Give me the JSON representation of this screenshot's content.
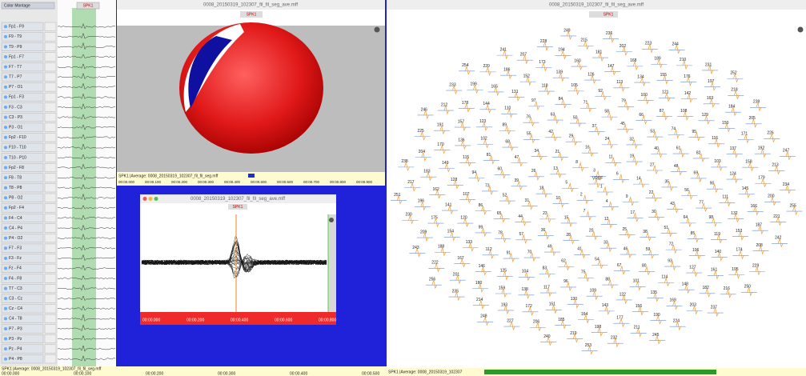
{
  "montage_label": "Color Montage",
  "channels": [
    "Fp1 - F9",
    "F9 - T9",
    "T9 - P9",
    "Fp1 - F7",
    "F7 - T7",
    "T7 - P7",
    "P7 - O1",
    "Fp1 - F3",
    "F3 - C3",
    "C3 - P3",
    "P3 - O1",
    "Fp2 - F10",
    "F10 - T10",
    "T10 - P10",
    "Fp2 - F8",
    "F8 - T8",
    "T8 - P8",
    "P8 - O2",
    "Fp2 - F4",
    "F4 - C4",
    "C4 - P4",
    "P4 - O2",
    "F7 - F3",
    "F3 - Fz",
    "Fz - F4",
    "F4 - F8",
    "T7 - C3",
    "C3 - Cz",
    "Cz - C4",
    "C4 - T8",
    "P7 - P3",
    "P3 - Pz",
    "Pz - P4",
    "P4 - P8"
  ],
  "main_event": "SPK1",
  "topomap_window": {
    "title": "0008_20150319_102307_fil_fil_seg_ave.mff",
    "event": "SPK1",
    "footer": "SPK1 |Average: 0008_20150319_102307_fil_fil_seg.mff",
    "times": [
      "00:00.000",
      "00:00.100",
      "00:00.200",
      "00:00.300",
      "00:00.400",
      "00:00.500",
      "00:00.600",
      "00:00.700",
      "00:00.800",
      "00:00.900"
    ]
  },
  "butterfly_window": {
    "title": "0008_20150319_102307_fil_fil_seg_ave.mff",
    "event": "SPK1",
    "times": [
      "00:00.000",
      "00:00.200",
      "00:00.400",
      "00:00.600",
      "00:00.800"
    ]
  },
  "electrode_window": {
    "title": "0008_20150319_102307_fil_fil_seg_ave.mff",
    "event": "SPK1",
    "footer": "SPK1 |Average: 0008_20150319_102307",
    "reference": "VREF",
    "electrodes": [
      1,
      2,
      3,
      4,
      5,
      6,
      7,
      8,
      9,
      10,
      11,
      12,
      13,
      14,
      15,
      16,
      17,
      18,
      19,
      20,
      21,
      22,
      23,
      24,
      25,
      26,
      27,
      28,
      29,
      30,
      31,
      32,
      33,
      34,
      35,
      36,
      37,
      38,
      39,
      40,
      41,
      42,
      43,
      44,
      45,
      46,
      47,
      48,
      49,
      50,
      51,
      52,
      53,
      54,
      55,
      56,
      57,
      58,
      59,
      60,
      61,
      62,
      63,
      64,
      65,
      66,
      67,
      68,
      69,
      70,
      71,
      72,
      73,
      74,
      75,
      76,
      77,
      78,
      79,
      80,
      81,
      82,
      83,
      84,
      85,
      86,
      87,
      88,
      89,
      90,
      91,
      92,
      93,
      94,
      95,
      96,
      97,
      98,
      99,
      100,
      101,
      102,
      103,
      104,
      105,
      106,
      107,
      108,
      109,
      110,
      111,
      112,
      113,
      114,
      115,
      116,
      117,
      118,
      119,
      120,
      121,
      122,
      123,
      124,
      125,
      126,
      127,
      128,
      129,
      130,
      131,
      132,
      133,
      134,
      135,
      136,
      137,
      138,
      139,
      140,
      141,
      142,
      143,
      144,
      145,
      146,
      147,
      148,
      149,
      150,
      151,
      152,
      153,
      154,
      155,
      156,
      157,
      158,
      159,
      160,
      161,
      162,
      163,
      164,
      165,
      166,
      167,
      168,
      169,
      170,
      171,
      172,
      173,
      174,
      175,
      176,
      177,
      178,
      179,
      180,
      181,
      182,
      183,
      184,
      185,
      186,
      187,
      188,
      189,
      190,
      191,
      192,
      193,
      194,
      195,
      196,
      197,
      198,
      199,
      200,
      201,
      202,
      203,
      204,
      205,
      206,
      207,
      208,
      209,
      210,
      211,
      212,
      213,
      214,
      215,
      216,
      217,
      218,
      219,
      220,
      221,
      222,
      223,
      224,
      225,
      226,
      227,
      228,
      229,
      230,
      231,
      232,
      233,
      234,
      235,
      236,
      237,
      238,
      239,
      240,
      241,
      242,
      243,
      244,
      245,
      246,
      247,
      248,
      249,
      250,
      251,
      252,
      253,
      254,
      255,
      256
    ]
  },
  "timeline": {
    "footer": "SPK1 |Average: 0008_20150319_102307_fil_fil_seg.mff",
    "times": [
      "00:00.000",
      "00:00.100",
      "00:00.200",
      "00:00.300",
      "00:00.400",
      "00:00.500"
    ]
  }
}
